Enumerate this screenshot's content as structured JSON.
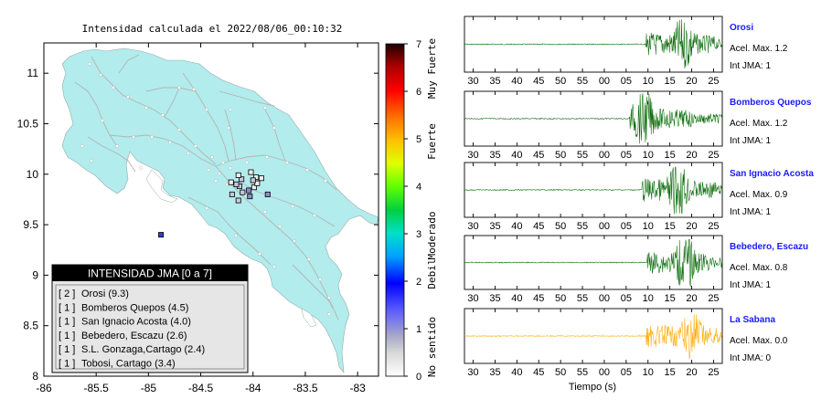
{
  "map": {
    "title": "Intensidad calculada el 2022/08/06_00:10:32",
    "x_ticks": [
      "-86",
      "-85.5",
      "-85",
      "-84.5",
      "-84",
      "-83.5",
      "-83"
    ],
    "y_ticks": [
      "11",
      "10.5",
      "10",
      "9.5",
      "9",
      "8.5",
      "8"
    ],
    "xlim": [
      -86,
      -82.8
    ],
    "ylim": [
      8,
      11.3
    ],
    "colors": {
      "land": "#b2ecec",
      "roads": "#b4b4b4",
      "frame": "#000000"
    }
  },
  "legend": {
    "header": "INTENSIDAD JMA [0 a 7]",
    "items": [
      {
        "count": "[ 2 ]",
        "name": "Orosi (9.3)"
      },
      {
        "count": "[ 1 ]",
        "name": "Bomberos Quepos (4.5)"
      },
      {
        "count": "[ 1 ]",
        "name": "San Ignacio Acosta (4.0)"
      },
      {
        "count": "[ 1 ]",
        "name": "Bebedero, Escazu (2.6)"
      },
      {
        "count": "[ 1 ]",
        "name": "S.L. Gonzaga,Cartago (2.4)"
      },
      {
        "count": "[ 1 ]",
        "name": "Tobosi, Cartago (3.4)"
      }
    ]
  },
  "colorbar": {
    "ticks": [
      "7",
      "6",
      "5",
      "4",
      "3",
      "2",
      "1",
      "0"
    ],
    "labels": [
      "Muy Fuerte",
      "Fuerte",
      "Moderado",
      "Debil",
      "No sentido"
    ],
    "range": [
      0,
      7
    ]
  },
  "chart_data": [
    {
      "type": "scatter",
      "title": "Intensidad calculada el 2022/08/06_00:10:32",
      "xlim": [
        -86,
        -82.8
      ],
      "ylim": [
        8,
        11.3
      ],
      "series": [
        {
          "values": [
            {
              "x": -83.99,
              "y": 9.87,
              "intensity": 0
            },
            {
              "x": -84.13,
              "y": 9.88,
              "intensity": 0.8
            },
            {
              "x": -84.11,
              "y": 9.95,
              "intensity": 0.6
            },
            {
              "x": -83.97,
              "y": 9.97,
              "intensity": 0.4
            },
            {
              "x": -83.96,
              "y": 9.91,
              "intensity": 0.4
            },
            {
              "x": -84.04,
              "y": 9.84,
              "intensity": 1.2
            },
            {
              "x": -84.16,
              "y": 9.9,
              "intensity": 0.5
            },
            {
              "x": -84.21,
              "y": 9.92,
              "intensity": 0.3
            },
            {
              "x": -84.1,
              "y": 9.82,
              "intensity": 0.7
            },
            {
              "x": -84.2,
              "y": 9.8,
              "intensity": 0.9
            },
            {
              "x": -84.03,
              "y": 9.78,
              "intensity": 1.0
            },
            {
              "x": -83.86,
              "y": 9.8,
              "intensity": 1.4
            },
            {
              "x": -84.02,
              "y": 10.02,
              "intensity": 0.2
            },
            {
              "x": -83.92,
              "y": 9.96,
              "intensity": 0.3
            },
            {
              "x": -84.14,
              "y": 9.99,
              "intensity": 0.2
            },
            {
              "x": -84.0,
              "y": 9.94,
              "intensity": 0.5
            },
            {
              "x": -84.14,
              "y": 9.74,
              "intensity": 0.8
            },
            {
              "x": -84.88,
              "y": 9.4,
              "intensity": 1.6
            }
          ]
        }
      ]
    },
    {
      "type": "line",
      "title": "Orosi",
      "xlabel": "",
      "x_ticks": [
        "30",
        "35",
        "40",
        "45",
        "50",
        "55",
        "00",
        "05",
        "10",
        "15",
        "20",
        "25"
      ],
      "line_color": "#006600",
      "onset": 9.5,
      "peak": 18.2,
      "end": 25.5,
      "annotation": [
        "Acel. Max. 1.2",
        "Int JMA: 1"
      ]
    },
    {
      "type": "line",
      "title": "Bomberos Quepos",
      "xlabel": "",
      "x_ticks": [
        "30",
        "35",
        "40",
        "45",
        "50",
        "55",
        "00",
        "05",
        "10",
        "15",
        "20",
        "25"
      ],
      "line_color": "#006600",
      "onset": 5.8,
      "peak": 9.0,
      "end": 20,
      "annotation": [
        "Acel. Max. 1.2",
        "Int JMA: 1"
      ]
    },
    {
      "type": "line",
      "title": "San Ignacio Acosta",
      "xlabel": "",
      "x_ticks": [
        "30",
        "35",
        "40",
        "45",
        "50",
        "55",
        "00",
        "05",
        "10",
        "15",
        "20",
        "25"
      ],
      "line_color": "#006600",
      "onset": 8.6,
      "peak": 17.0,
      "end": 25.5,
      "annotation": [
        "Acel. Max. 0.9",
        "Int JMA: 1"
      ]
    },
    {
      "type": "line",
      "title": "Bebedero, Escazu",
      "xlabel": "",
      "x_ticks": [
        "30",
        "35",
        "40",
        "45",
        "50",
        "55",
        "00",
        "05",
        "10",
        "15",
        "20",
        "25"
      ],
      "line_color": "#006600",
      "onset": 9.8,
      "peak": 18.5,
      "end": 24,
      "annotation": [
        "Acel. Max. 0.8",
        "Int JMA: 1"
      ]
    },
    {
      "type": "line",
      "title": "La Sabana",
      "xlabel": "Tiempo (s)",
      "x_ticks": [
        "30",
        "35",
        "40",
        "45",
        "50",
        "55",
        "00",
        "05",
        "10",
        "15",
        "20",
        "25"
      ],
      "line_color": "#ffaa00",
      "onset": 9.6,
      "peak": 20.0,
      "end": 27,
      "annotation": [
        "Acel. Max. 0.0",
        "Int JMA: 0"
      ]
    }
  ]
}
